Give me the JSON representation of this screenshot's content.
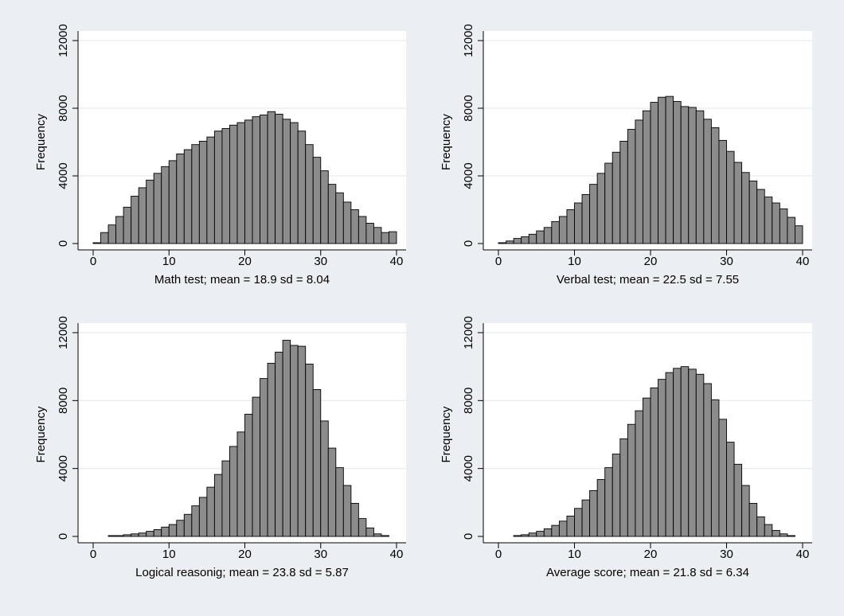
{
  "chart_data": [
    {
      "type": "bar",
      "xlabel": "Math test;  mean = 18.9 sd = 8.04",
      "ylabel": "Frequency",
      "xlim": [
        0,
        40
      ],
      "ylim": [
        0,
        12000
      ],
      "xticks": [
        0,
        10,
        20,
        30,
        40
      ],
      "yticks": [
        0,
        4000,
        8000,
        12000
      ],
      "grid": true,
      "bin_width": 1,
      "x": [
        0,
        1,
        2,
        3,
        4,
        5,
        6,
        7,
        8,
        9,
        10,
        11,
        12,
        13,
        14,
        15,
        16,
        17,
        18,
        19,
        20,
        21,
        22,
        23,
        24,
        25,
        26,
        27,
        28,
        29,
        30,
        31,
        32,
        33,
        34,
        35,
        36,
        37,
        38,
        39
      ],
      "values": [
        50,
        650,
        1100,
        1600,
        2150,
        2800,
        3300,
        3750,
        4150,
        4550,
        4900,
        5300,
        5550,
        5850,
        6050,
        6300,
        6650,
        6800,
        7000,
        7150,
        7300,
        7500,
        7600,
        7800,
        7650,
        7350,
        7150,
        6650,
        5850,
        5100,
        4300,
        3500,
        3000,
        2450,
        2000,
        1600,
        1200,
        950,
        650,
        700
      ]
    },
    {
      "type": "bar",
      "xlabel": "Verbal test;  mean = 22.5 sd = 7.55",
      "ylabel": "Frequency",
      "xlim": [
        0,
        40
      ],
      "ylim": [
        0,
        12000
      ],
      "xticks": [
        0,
        10,
        20,
        30,
        40
      ],
      "yticks": [
        0,
        4000,
        8000,
        12000
      ],
      "grid": true,
      "bin_width": 1,
      "x": [
        0,
        1,
        2,
        3,
        4,
        5,
        6,
        7,
        8,
        9,
        10,
        11,
        12,
        13,
        14,
        15,
        16,
        17,
        18,
        19,
        20,
        21,
        22,
        23,
        24,
        25,
        26,
        27,
        28,
        29,
        30,
        31,
        32,
        33,
        34,
        35,
        36,
        37,
        38,
        39
      ],
      "values": [
        50,
        150,
        300,
        400,
        550,
        750,
        950,
        1300,
        1600,
        2000,
        2400,
        2900,
        3500,
        4150,
        4750,
        5400,
        6050,
        6750,
        7300,
        7850,
        8350,
        8650,
        8700,
        8400,
        8100,
        8050,
        7850,
        7350,
        6850,
        6100,
        5450,
        4800,
        4200,
        3700,
        3200,
        2750,
        2400,
        2050,
        1550,
        1050
      ]
    },
    {
      "type": "bar",
      "xlabel": "Logical reasonig;  mean = 23.8 sd = 5.87",
      "ylabel": "Frequency",
      "xlim": [
        0,
        40
      ],
      "ylim": [
        0,
        12000
      ],
      "xticks": [
        0,
        10,
        20,
        30,
        40
      ],
      "yticks": [
        0,
        4000,
        8000,
        12000
      ],
      "grid": true,
      "bin_width": 1,
      "x": [
        0,
        1,
        2,
        3,
        4,
        5,
        6,
        7,
        8,
        9,
        10,
        11,
        12,
        13,
        14,
        15,
        16,
        17,
        18,
        19,
        20,
        21,
        22,
        23,
        24,
        25,
        26,
        27,
        28,
        29,
        30,
        31,
        32,
        33,
        34,
        35,
        36,
        37,
        38,
        39
      ],
      "values": [
        0,
        0,
        50,
        50,
        100,
        150,
        200,
        300,
        400,
        550,
        700,
        950,
        1300,
        1800,
        2300,
        2900,
        3650,
        4450,
        5300,
        6150,
        7200,
        8200,
        9300,
        10200,
        10850,
        11550,
        11250,
        11200,
        10150,
        8650,
        6800,
        5200,
        4050,
        3000,
        1950,
        1050,
        500,
        150,
        50,
        0
      ]
    },
    {
      "type": "bar",
      "xlabel": "Average score;  mean = 21.8 sd = 6.34",
      "ylabel": "Frequency",
      "xlim": [
        0,
        40
      ],
      "ylim": [
        0,
        12000
      ],
      "xticks": [
        0,
        10,
        20,
        30,
        40
      ],
      "yticks": [
        0,
        4000,
        8000,
        12000
      ],
      "grid": true,
      "bin_width": 1,
      "x": [
        0,
        1,
        2,
        3,
        4,
        5,
        6,
        7,
        8,
        9,
        10,
        11,
        12,
        13,
        14,
        15,
        16,
        17,
        18,
        19,
        20,
        21,
        22,
        23,
        24,
        25,
        26,
        27,
        28,
        29,
        30,
        31,
        32,
        33,
        34,
        35,
        36,
        37,
        38,
        39
      ],
      "values": [
        0,
        0,
        50,
        100,
        200,
        300,
        450,
        650,
        900,
        1200,
        1650,
        2150,
        2700,
        3350,
        4050,
        4850,
        5750,
        6600,
        7400,
        8150,
        8750,
        9250,
        9650,
        9900,
        10000,
        9850,
        9550,
        9000,
        8050,
        6900,
        5550,
        4250,
        3000,
        1950,
        1150,
        700,
        350,
        150,
        50,
        0
      ]
    }
  ]
}
